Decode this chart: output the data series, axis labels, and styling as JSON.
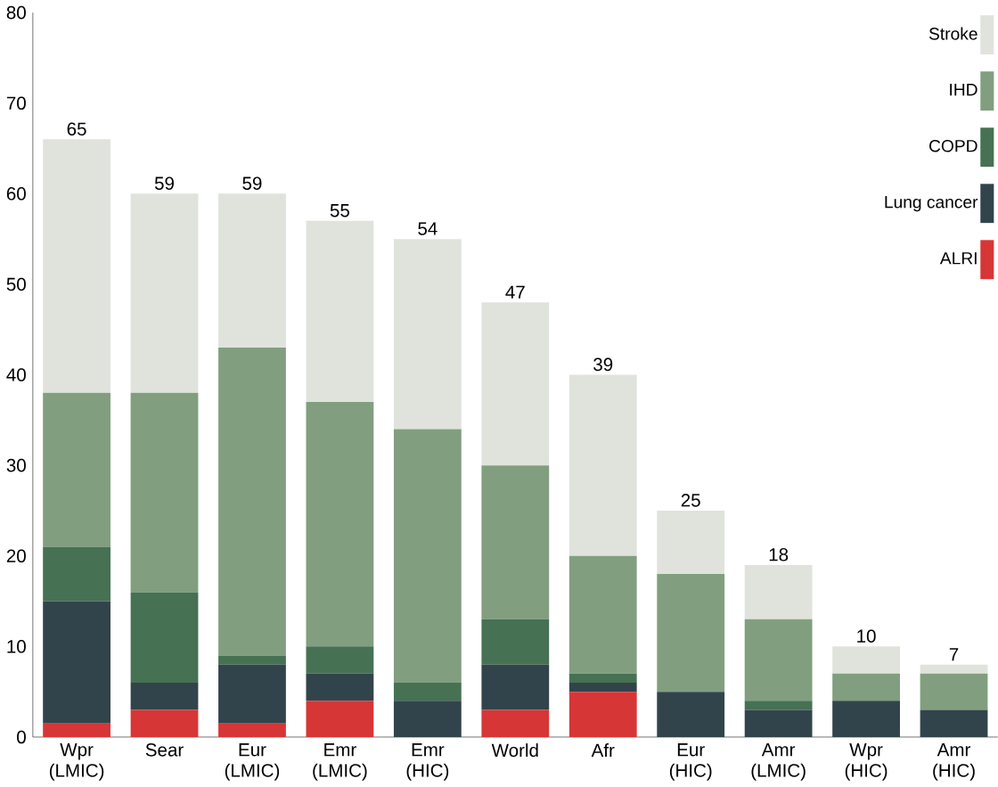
{
  "chart_data": {
    "type": "bar",
    "stacked": true,
    "categories": [
      "Wpr (LMIC)",
      "Sear",
      "Eur (LMIC)",
      "Emr (LMIC)",
      "Emr (HIC)",
      "World",
      "Afr",
      "Eur (HIC)",
      "Amr (LMIC)",
      "Wpr (HIC)",
      "Amr (HIC)"
    ],
    "series": [
      {
        "name": "ALRI",
        "color": "#d73636",
        "values": [
          1.5,
          3,
          1.5,
          4,
          0,
          3,
          5,
          0,
          0,
          0,
          0
        ]
      },
      {
        "name": "Lung cancer",
        "color": "#32444b",
        "values": [
          13.5,
          3,
          6.5,
          3,
          4,
          5,
          1,
          5,
          3,
          4,
          3
        ]
      },
      {
        "name": "COPD",
        "color": "#467153",
        "values": [
          6,
          10,
          1,
          3,
          2,
          5,
          1,
          0,
          1,
          0,
          0
        ]
      },
      {
        "name": "IHD",
        "color": "#819f7f",
        "values": [
          17,
          22,
          34,
          27,
          28,
          17,
          13,
          13,
          9,
          3,
          4
        ]
      },
      {
        "name": "Stroke",
        "color": "#dfe3dc",
        "values": [
          28,
          22,
          17,
          20,
          21,
          18,
          20,
          7,
          6,
          3,
          1
        ]
      }
    ],
    "totals": [
      "65",
      "59",
      "59",
      "55",
      "54",
      "47",
      "39",
      "25",
      "18",
      "10",
      "7"
    ],
    "ylim": [
      0,
      80
    ],
    "yticks": [
      0,
      10,
      20,
      30,
      40,
      50,
      60,
      70,
      80
    ],
    "grid": false,
    "legend": "top right"
  }
}
